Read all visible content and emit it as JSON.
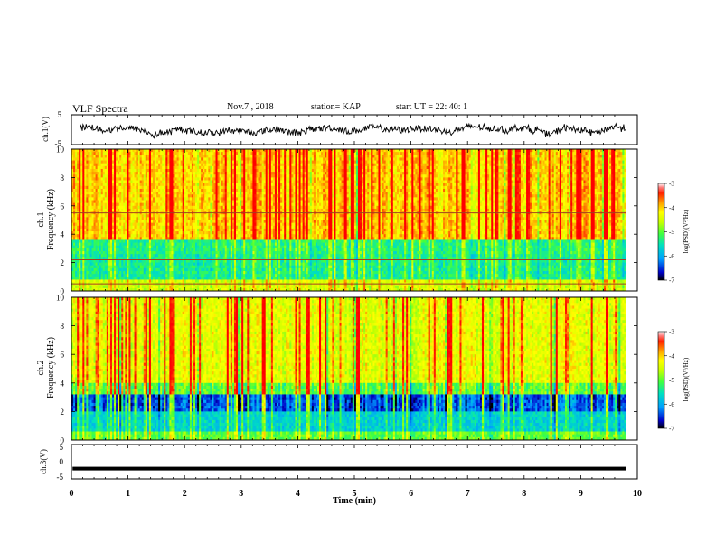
{
  "header": {
    "title": "VLF Spectra",
    "date": "Nov.7 , 2018",
    "station": "station= KAP",
    "start_ut": "start UT =  22: 40: 1"
  },
  "colors": {
    "spectrogram_scale": [
      "#000000",
      "#0000c8",
      "#00a0ff",
      "#00e0c0",
      "#40ff40",
      "#c8ff00",
      "#ffff00",
      "#ffa000",
      "#ff3c00",
      "#ff0000",
      "#ffffff"
    ],
    "trace": "#000000"
  },
  "chart_data": [
    {
      "type": "line",
      "panel": "ch1-waveform",
      "ylabel": "ch.1(V)",
      "ylim": [
        -5,
        5
      ],
      "y_ticks": [
        "5",
        "-5"
      ],
      "xlim": [
        0,
        10
      ],
      "approx_level_V": 0
    },
    {
      "type": "heatmap",
      "panel": "ch1-spectrogram",
      "ylabel": "ch.1\nFrequency (kHz)",
      "ylim": [
        0,
        10
      ],
      "y_ticks": [
        "0",
        "2",
        "4",
        "6",
        "8",
        "10"
      ],
      "xlim": [
        0,
        9.8
      ],
      "colorbar": {
        "label": "log(PSD)(V²/Hz)",
        "ticks": [
          "-3",
          "-4",
          "-5",
          "-6",
          "-7"
        ],
        "range": [
          -7,
          -3
        ]
      },
      "horizontal_lines_kHz": [
        5.5,
        2.2,
        0.5
      ]
    },
    {
      "type": "heatmap",
      "panel": "ch2-spectrogram",
      "ylabel": "ch.2\nFrequency (kHz)",
      "ylim": [
        0,
        10
      ],
      "y_ticks": [
        "0",
        "2",
        "4",
        "6",
        "8",
        "10"
      ],
      "xlim": [
        0,
        9.8
      ],
      "colorbar": {
        "label": "log(PSD)(V²/Hz)",
        "ticks": [
          "-3",
          "-4",
          "-5",
          "-6",
          "-7"
        ],
        "range": [
          -7,
          -3
        ]
      }
    },
    {
      "type": "line",
      "panel": "ch3-waveform",
      "ylabel": "ch.3(V)",
      "ylim": [
        -5,
        5
      ],
      "y_ticks": [
        "5",
        "0",
        "-5"
      ],
      "xlim": [
        0,
        10
      ],
      "approx_level_V": -2
    }
  ],
  "x_axis": {
    "label": "Time (min)",
    "ticks": [
      "0",
      "1",
      "2",
      "3",
      "4",
      "5",
      "6",
      "7",
      "8",
      "9",
      "10"
    ]
  }
}
